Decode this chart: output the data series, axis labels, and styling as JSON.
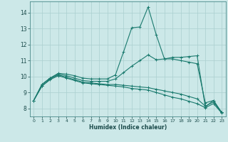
{
  "title": "",
  "xlabel": "Humidex (Indice chaleur)",
  "ylabel": "",
  "xlim": [
    -0.5,
    23.5
  ],
  "ylim": [
    7.5,
    14.7
  ],
  "yticks": [
    8,
    9,
    10,
    11,
    12,
    13,
    14
  ],
  "xticks": [
    0,
    1,
    2,
    3,
    4,
    5,
    6,
    7,
    8,
    9,
    10,
    11,
    12,
    13,
    14,
    15,
    16,
    17,
    18,
    19,
    20,
    21,
    22,
    23
  ],
  "bg_color": "#cce8e8",
  "line_color": "#1a7a6e",
  "grid_color": "#aacfcf",
  "lines": [
    {
      "x": [
        0,
        1,
        2,
        3,
        4,
        5,
        6,
        7,
        8,
        9,
        10,
        11,
        12,
        13,
        14,
        15,
        16,
        17,
        18,
        19,
        20,
        21,
        22,
        23
      ],
      "y": [
        8.5,
        9.5,
        9.9,
        10.2,
        10.15,
        10.05,
        9.9,
        9.85,
        9.85,
        9.85,
        10.1,
        11.55,
        13.05,
        13.1,
        14.35,
        12.6,
        11.1,
        11.2,
        11.2,
        11.25,
        11.3,
        8.1,
        8.5,
        7.75
      ]
    },
    {
      "x": [
        0,
        1,
        2,
        3,
        4,
        5,
        6,
        7,
        8,
        9,
        10,
        11,
        12,
        13,
        14,
        15,
        16,
        17,
        18,
        19,
        20,
        21,
        22,
        23
      ],
      "y": [
        8.5,
        9.5,
        9.9,
        10.15,
        10.05,
        9.9,
        9.75,
        9.7,
        9.7,
        9.7,
        9.85,
        10.25,
        10.65,
        11.0,
        11.35,
        11.05,
        11.1,
        11.1,
        11.0,
        10.9,
        10.8,
        8.35,
        8.5,
        7.75
      ]
    },
    {
      "x": [
        0,
        1,
        2,
        3,
        4,
        5,
        6,
        7,
        8,
        9,
        10,
        11,
        12,
        13,
        14,
        15,
        16,
        17,
        18,
        19,
        20,
        21,
        22,
        23
      ],
      "y": [
        8.5,
        9.4,
        9.85,
        10.1,
        9.95,
        9.8,
        9.65,
        9.6,
        9.55,
        9.5,
        9.5,
        9.45,
        9.4,
        9.35,
        9.3,
        9.2,
        9.1,
        9.0,
        8.9,
        8.75,
        8.6,
        8.15,
        8.4,
        7.75
      ]
    },
    {
      "x": [
        0,
        1,
        2,
        3,
        4,
        5,
        6,
        7,
        8,
        9,
        10,
        11,
        12,
        13,
        14,
        15,
        16,
        17,
        18,
        19,
        20,
        21,
        22,
        23
      ],
      "y": [
        8.5,
        9.4,
        9.8,
        10.05,
        9.9,
        9.75,
        9.6,
        9.55,
        9.5,
        9.45,
        9.4,
        9.35,
        9.25,
        9.2,
        9.15,
        9.0,
        8.85,
        8.7,
        8.6,
        8.45,
        8.3,
        8.05,
        8.3,
        7.72
      ]
    }
  ]
}
